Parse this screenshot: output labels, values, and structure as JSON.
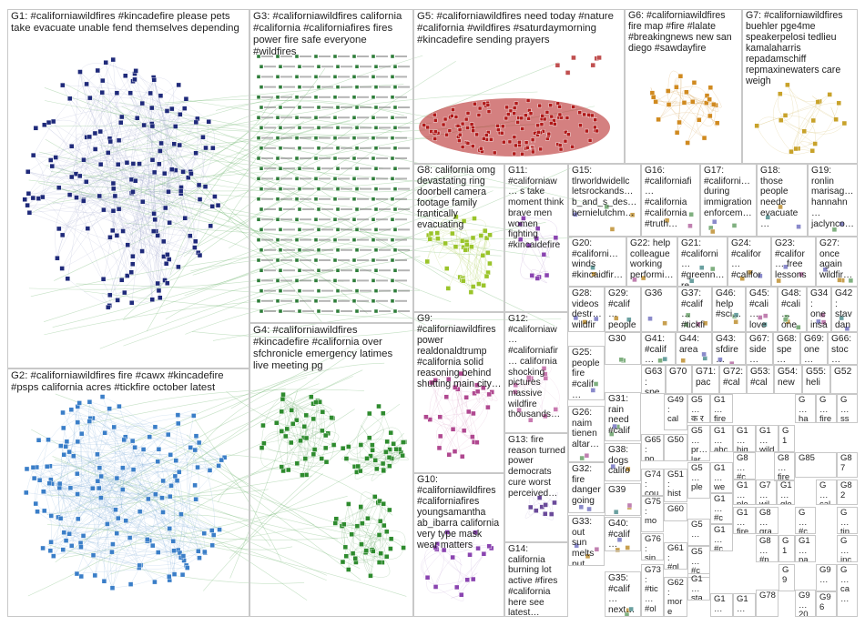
{
  "groups": [
    {
      "id": "G1",
      "label": "G1: #californiawildfires #kincadefire please pets take evacuate unable fend themselves depending"
    },
    {
      "id": "G2",
      "label": "G2: #californiawildfires fire #cawx #kincadefire #psps california acres #tickfire october latest"
    },
    {
      "id": "G3",
      "label": "G3: #californiawildfires california #california #californiafires fires power fire safe everyone #wildfires"
    },
    {
      "id": "G4",
      "label": "G4: #californiawildfires #kincadefire #california over sfchronicle emergency latimes live meeting pg"
    },
    {
      "id": "G5",
      "label": "G5: #californiawildfires need today #nature #california #wildfires #saturdaymorning #kincadefire sending prayers"
    },
    {
      "id": "G6",
      "label": "G6: #californiawildfires fire map #fire #lalate #breakingnews new san diego #sawdayfire"
    },
    {
      "id": "G7",
      "label": "G7: #californiawildfires buehler pge4me speakerpelosi tedlieu kamalaharris repadamschiff repmaxinewaters care weigh"
    },
    {
      "id": "G8",
      "label": "G8: california omg devastating ring doorbell camera footage family frantically evacuating"
    },
    {
      "id": "G10",
      "label": "G10: #californiawildfires #californiafires youngsamantha ab_ibarra california very type mask wear matters"
    },
    {
      "id": "G11",
      "label": "G11: #californiaw… s take moment think brave men women fighting #kincaidefire"
    },
    {
      "id": "G12",
      "label": "G12: #californiaw… #californiafir… california shocking pictures massive wildfire thousands…"
    },
    {
      "id": "G9",
      "label": "G9: #californiawildfires power realdonaldtrump #california solid reasoning behind shutting main city…"
    },
    {
      "id": "G13",
      "label": "G13: fire reason turned power democrats cure worst perceived…"
    },
    {
      "id": "G14",
      "label": "G14: california burning lot active #fires #california here see latest…"
    },
    {
      "id": "G15",
      "label": "G15: tlrworldwidellc letsrockands… b_and_s_des… bernielutchm…"
    },
    {
      "id": "G16",
      "label": "G16: #californiafi… #california #california #truth…"
    },
    {
      "id": "G17",
      "label": "G17: #californi… during immigration enforcem…"
    },
    {
      "id": "G18",
      "label": "G18: those people neede evacuate…"
    },
    {
      "id": "G19",
      "label": "G19: ronlin marisag… hannahn… jaclynco…"
    },
    {
      "id": "G20",
      "label": "G20: #californi… winds #kincaidfir…"
    },
    {
      "id": "G22",
      "label": "G22: help colleague working performi…"
    },
    {
      "id": "G21",
      "label": "G21: #californi… #greenn… re paying…"
    },
    {
      "id": "G24",
      "label": "G24: #califor… #califor… #califor…"
    },
    {
      "id": "G23",
      "label": "G23: #califor… free lessons…"
    },
    {
      "id": "G27",
      "label": "G27: once again wildfir…"
    },
    {
      "id": "G25",
      "label": "G25: people fire #calif…"
    },
    {
      "id": "G26",
      "label": "G26: naim tienen altar…"
    },
    {
      "id": "G28",
      "label": "G28: videos destr… wildfir…"
    },
    {
      "id": "G29",
      "label": "G29: #calif… people pets…"
    },
    {
      "id": "G36",
      "label": "G36"
    },
    {
      "id": "G37",
      "label": "G37: #calif… #tickfi…"
    },
    {
      "id": "G46",
      "label": "G46: help #sci…"
    },
    {
      "id": "G45",
      "label": "G45: #cali… love…"
    },
    {
      "id": "G48",
      "label": "G48: #cali… one…"
    },
    {
      "id": "G34",
      "label": "G34: one insa…"
    },
    {
      "id": "G42",
      "label": "G42: stav dan…"
    },
    {
      "id": "G30",
      "label": "G30"
    },
    {
      "id": "G41",
      "label": "G41: #calif…"
    },
    {
      "id": "G44",
      "label": "G44: area"
    },
    {
      "id": "G43",
      "label": "G43: sfdire…"
    },
    {
      "id": "G67",
      "label": "G67: side…"
    },
    {
      "id": "G68",
      "label": "G68: spe…"
    },
    {
      "id": "G69",
      "label": "G69: one…"
    },
    {
      "id": "G66",
      "label": "G66: stoc…"
    },
    {
      "id": "G31",
      "label": "G31: rain need #calif…"
    },
    {
      "id": "G63",
      "label": "G63: spe… sho…"
    },
    {
      "id": "G70",
      "label": "G70"
    },
    {
      "id": "G71",
      "label": "G71: pac…"
    },
    {
      "id": "G72",
      "label": "G72: #cal…"
    },
    {
      "id": "G53",
      "label": "G53: #cal…"
    },
    {
      "id": "G54",
      "label": "G54: new…"
    },
    {
      "id": "G55",
      "label": "G55: heli…"
    },
    {
      "id": "G52",
      "label": "G52"
    },
    {
      "id": "G38",
      "label": "G38: dogs califo…"
    },
    {
      "id": "G49",
      "label": "G49: cal… doe…"
    },
    {
      "id": "G5x1",
      "label": "G5… क र"
    },
    {
      "id": "G1x1",
      "label": "G1… fire…"
    },
    {
      "id": "Gx1",
      "label": "G… ha…"
    },
    {
      "id": "Gx2",
      "label": "G… fire…"
    },
    {
      "id": "Gx3",
      "label": "G… ss…"
    },
    {
      "id": "G65",
      "label": "G65: po…"
    },
    {
      "id": "G50",
      "label": "G50"
    },
    {
      "id": "G5x2",
      "label": "G5… pr… lar…"
    },
    {
      "id": "G1x2",
      "label": "G1… abc"
    },
    {
      "id": "G1x3",
      "label": "G1… hig…"
    },
    {
      "id": "G1x4",
      "label": "G1… wild…"
    },
    {
      "id": "G1x5",
      "label": "G1… pr…"
    },
    {
      "id": "G85",
      "label": "G85"
    },
    {
      "id": "G87",
      "label": "G87"
    },
    {
      "id": "G32",
      "label": "G32: fire danger going…"
    },
    {
      "id": "G39",
      "label": "G39"
    },
    {
      "id": "G74",
      "label": "G74: cou… ple…"
    },
    {
      "id": "G51",
      "label": "G51: hist… win…"
    },
    {
      "id": "G8x1",
      "label": "G8… fire…"
    },
    {
      "id": "G8x2",
      "label": "G8… #c…"
    },
    {
      "id": "G5x3",
      "label": "G5… ple… pray"
    },
    {
      "id": "G1x6",
      "label": "G1… we…"
    },
    {
      "id": "G1x7",
      "label": "G1… ple…"
    },
    {
      "id": "G7x1",
      "label": "G7… wil…"
    },
    {
      "id": "G1x8",
      "label": "G1… glo…"
    },
    {
      "id": "Gx4",
      "label": "G… cal…"
    },
    {
      "id": "G82",
      "label": "G82"
    },
    {
      "id": "G33",
      "label": "G33: out sun melts put…"
    },
    {
      "id": "G40",
      "label": "G40: #calif… #son…"
    },
    {
      "id": "G60",
      "label": "G60"
    },
    {
      "id": "G75",
      "label": "G75: mo… vid…"
    },
    {
      "id": "G5x4",
      "label": "G5…"
    },
    {
      "id": "G1x9",
      "label": "G1… #c…"
    },
    {
      "id": "G1x10",
      "label": "G1… fire…"
    },
    {
      "id": "G8x3",
      "label": "G8… gra…"
    },
    {
      "id": "Gx5",
      "label": "G… #c…"
    },
    {
      "id": "Gx6",
      "label": "G… tin…"
    },
    {
      "id": "G76",
      "label": "G76: sin…"
    },
    {
      "id": "G61",
      "label": "G61: #gl… #c…"
    },
    {
      "id": "G5x5",
      "label": "G5… #c… fire…"
    },
    {
      "id": "G1x11",
      "label": "G1… #c…"
    },
    {
      "id": "G8x4",
      "label": "G8… #p…"
    },
    {
      "id": "G1x12",
      "label": "G1… sp…"
    },
    {
      "id": "G1x13",
      "label": "G1… pa…"
    },
    {
      "id": "Gx7",
      "label": "G… inc…"
    },
    {
      "id": "G35",
      "label": "G35: #calif… next…"
    },
    {
      "id": "G73",
      "label": "G73: #tic… #ol…"
    },
    {
      "id": "G62",
      "label": "G62: more fire…"
    },
    {
      "id": "G1x14",
      "label": "G1… sta…"
    },
    {
      "id": "G1x15",
      "label": "G1… pe…"
    },
    {
      "id": "G1x16",
      "label": "G1… ye…"
    },
    {
      "id": "G78",
      "label": "G78"
    },
    {
      "id": "G9x1",
      "label": "G9… per…"
    },
    {
      "id": "G9x2",
      "label": "G9…"
    },
    {
      "id": "G9x3",
      "label": "G9… 20…"
    },
    {
      "id": "G96",
      "label": "G96"
    },
    {
      "id": "Gx8",
      "label": "G… ca…"
    }
  ],
  "colors": {
    "G1": "#1f2a7a",
    "G2": "#3a7ec8",
    "G3": "#2e7d3a",
    "G4": "#2e8b2e",
    "G5": "#b01818",
    "G6": "#d08a20",
    "G7": "#c8a22a",
    "G8": "#9ac42a",
    "G11": "#8a44b0",
    "edge": "#5cab5c",
    "small": "#6a9d8a",
    "border": "#c8c8c8"
  }
}
